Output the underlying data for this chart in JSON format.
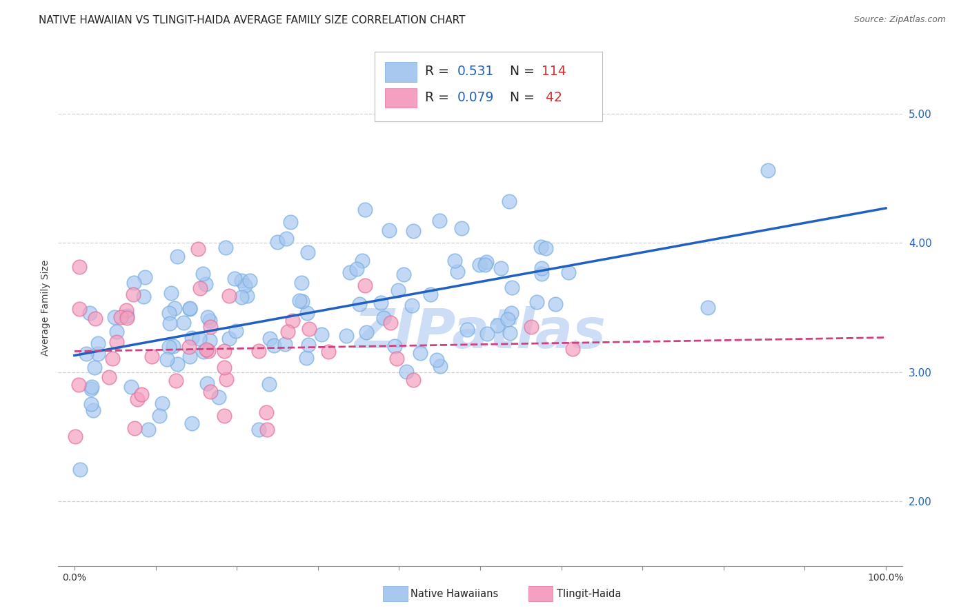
{
  "title": "NATIVE HAWAIIAN VS TLINGIT-HAIDA AVERAGE FAMILY SIZE CORRELATION CHART",
  "source": "Source: ZipAtlas.com",
  "ylabel": "Average Family Size",
  "yticks_right": [
    2.0,
    3.0,
    4.0,
    5.0
  ],
  "ylim": [
    1.5,
    5.5
  ],
  "xlim": [
    -0.02,
    1.02
  ],
  "blue_scatter_color": "#a8c8f0",
  "blue_edge_color": "#7aaee0",
  "pink_scatter_color": "#f5a0c0",
  "pink_edge_color": "#e070a0",
  "blue_line_color": "#2060c0",
  "pink_line_color": "#d04080",
  "blue_legend_color": "#a8c8f0",
  "pink_legend_color": "#f5a0c0",
  "watermark": "ZIPatlas",
  "watermark_color": "#ccddf5",
  "background_color": "#ffffff",
  "grid_color": "#d0d0d0",
  "title_fontsize": 11,
  "axis_fontsize": 10,
  "legend_value_color": "#2060c0",
  "legend_N_color": "#cc3030",
  "nh_R": 0.531,
  "nh_N": 114,
  "th_R": 0.079,
  "th_N": 42,
  "seed": 7
}
